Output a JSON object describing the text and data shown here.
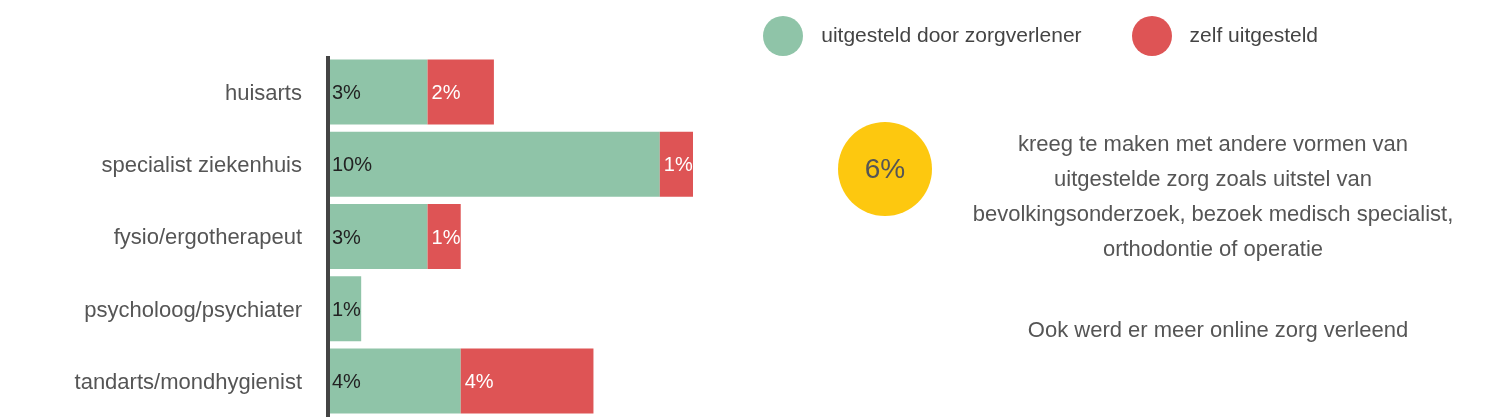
{
  "chart_data": {
    "type": "bar",
    "orientation": "horizontal",
    "stacked": true,
    "categories": [
      "huisarts",
      "specialist ziekenhuis",
      "fysio/ergotherapeut",
      "psycholoog/psychiater",
      "tandarts/mondhygienist"
    ],
    "series": [
      {
        "name": "uitgesteld door zorgverlener",
        "color": "#8fc4a8",
        "values": [
          3,
          10,
          3,
          1,
          4
        ],
        "value_labels": [
          "3%",
          "10%",
          "3%",
          "1%",
          "4%"
        ]
      },
      {
        "name": "zelf uitgesteld",
        "color": "#de5455",
        "values": [
          2,
          1,
          1,
          null,
          4
        ],
        "value_labels": [
          "2%",
          "1%",
          "1%",
          null,
          "4%"
        ]
      }
    ],
    "legend": "top right",
    "annotations": [
      "6%",
      "kreeg te maken met andere vormen van uitgestelde zorg zoals uitstel van bevolkingsonderzoek, bezoek medisch specialist, orthodontie of operatie",
      "Ook werd er meer online zorg verleend"
    ]
  }
}
